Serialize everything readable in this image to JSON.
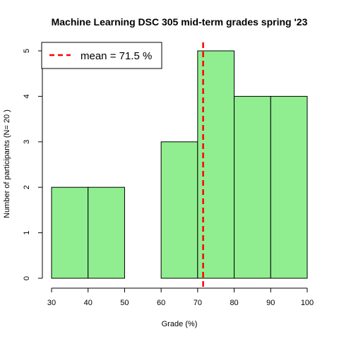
{
  "chart_data": {
    "type": "bar",
    "subtype": "histogram",
    "title": "Machine Learning DSC 305 mid-term grades spring '23",
    "xlabel": "Grade (%)",
    "ylabel": "Number of participants (N= 20 )",
    "bins": [
      [
        30,
        40
      ],
      [
        40,
        50
      ],
      [
        50,
        60
      ],
      [
        60,
        70
      ],
      [
        70,
        80
      ],
      [
        80,
        90
      ],
      [
        90,
        100
      ]
    ],
    "values": [
      2,
      2,
      0,
      3,
      5,
      4,
      4
    ],
    "xlim": [
      30,
      100
    ],
    "ylim": [
      0,
      5
    ],
    "xticks": [
      30,
      40,
      50,
      60,
      70,
      80,
      90,
      100
    ],
    "yticks": [
      0,
      1,
      2,
      3,
      4,
      5
    ],
    "bar_color": "#90ee90",
    "bar_edge_color": "#000000",
    "grid": false,
    "mean_line": {
      "value": 71.5,
      "color": "#ff0000",
      "style": "dashed"
    },
    "legend": {
      "position": "top-left",
      "entries": [
        "mean = 71.5 %"
      ]
    }
  }
}
